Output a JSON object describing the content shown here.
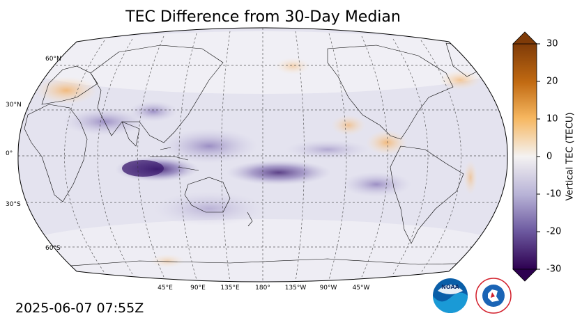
{
  "title": "TEC Difference from 30-Day Median",
  "timestamp": "2025-06-07 07:55Z",
  "map": {
    "projection": "Robinson, centered on 180°",
    "lat_labels": [
      "60°N",
      "30°N",
      "0°",
      "30°S",
      "60°S"
    ],
    "lon_labels": [
      "45°E",
      "90°E",
      "135°E",
      "180°",
      "135°W",
      "90°W",
      "45°W"
    ]
  },
  "colorbar": {
    "label": "Vertical TEC (TECU)",
    "ticks": [
      "30",
      "20",
      "10",
      "0",
      "-10",
      "-20",
      "-30"
    ],
    "range": [
      -30,
      30
    ],
    "colormap": "purple-orange diverging",
    "low_color": "#2d0050",
    "high_color": "#7f3b08"
  },
  "logos": {
    "noaa": "NOAA",
    "nws": "NATIONAL WEATHER SERVICE"
  }
}
